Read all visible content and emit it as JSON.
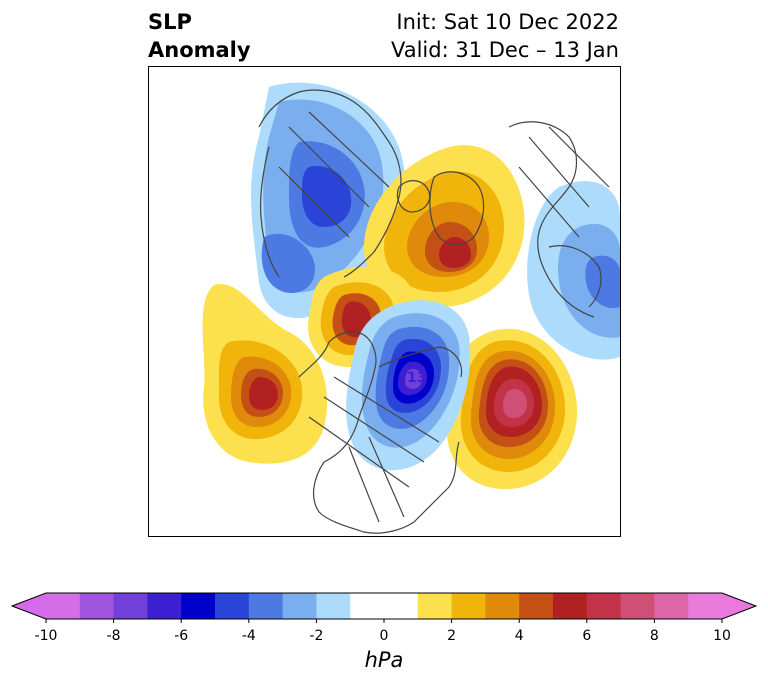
{
  "title": {
    "left_line1": "SLP",
    "left_line2": "Anomaly",
    "right_line1": "Init: Sat 10 Dec 2022",
    "right_line2": "Valid: 31 Dec – 13 Jan"
  },
  "colorbar": {
    "label": "hPa",
    "ticks": [
      "-10",
      "-8",
      "-6",
      "-4",
      "-2",
      "0",
      "2",
      "4",
      "6",
      "8",
      "10"
    ],
    "colors": [
      "#d36ee6",
      "#a155df",
      "#7040d8",
      "#3d1fd2",
      "#0000cc",
      "#2a44d8",
      "#4d79e3",
      "#7aaeee",
      "#acdbfb",
      "#ffffff",
      "#ffffff",
      "#fde04e",
      "#f1b40a",
      "#df8a0b",
      "#c55016",
      "#b12121",
      "#c23348",
      "#d04f77",
      "#dc66a8",
      "#e97bdb"
    ],
    "neg_arrow": "#d56bea",
    "pos_arrow": "#ea78de"
  },
  "map": {
    "features": [
      {
        "name": "pacific-high",
        "levels": [
          2,
          4,
          6,
          7
        ]
      },
      {
        "name": "gulf-of-alaska-high",
        "levels": [
          2,
          4,
          6
        ]
      },
      {
        "name": "atlantic-high",
        "levels": [
          2,
          4,
          6,
          8,
          9
        ]
      },
      {
        "name": "polar-high",
        "levels": [
          2,
          4,
          6
        ]
      },
      {
        "name": "greenland-low",
        "levels": [
          -2,
          -4,
          -6,
          -8
        ],
        "label": "13"
      },
      {
        "name": "siberian-low",
        "levels": [
          -2,
          -4,
          -6
        ]
      },
      {
        "name": "european-low",
        "levels": [
          -2,
          -4
        ]
      }
    ]
  }
}
